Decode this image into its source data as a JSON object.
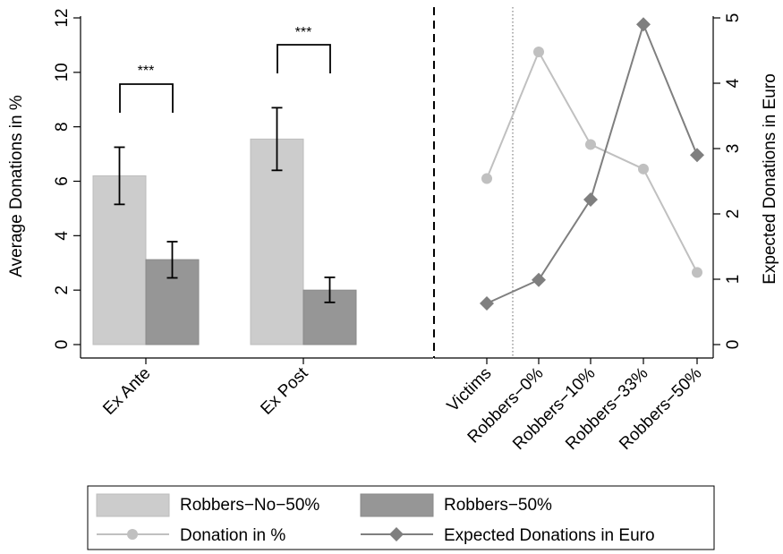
{
  "chart_data": {
    "type": "bar+line",
    "left_panel": {
      "type": "bar",
      "ylabel": "Average Donations in %",
      "ylim": [
        0,
        12
      ],
      "yticks": [
        "0",
        "2",
        "4",
        "6",
        "8",
        "10",
        "12"
      ],
      "categories": [
        "Ex Ante",
        "Ex Post"
      ],
      "series": [
        {
          "name": "Robbers−No−50%",
          "color": "#cccccc",
          "values": [
            6.2,
            7.55
          ],
          "ci_low": [
            5.15,
            6.4
          ],
          "ci_high": [
            7.25,
            8.7
          ]
        },
        {
          "name": "Robbers−50%",
          "color": "#969696",
          "values": [
            3.12,
            2.0
          ],
          "ci_low": [
            2.45,
            1.55
          ],
          "ci_high": [
            3.78,
            2.47
          ]
        }
      ],
      "significance": [
        "***",
        "***"
      ]
    },
    "right_panel": {
      "type": "line",
      "categories": [
        "Victims",
        "Robbers−0%",
        "Robbers−10%",
        "Robbers−33%",
        "Robbers−50%"
      ],
      "left_ylim": [
        0,
        12
      ],
      "right_ylabel": "Expected Donations in Euro",
      "right_ylim": [
        0,
        5
      ],
      "right_yticks": [
        "0",
        "1",
        "2",
        "3",
        "4",
        "5"
      ],
      "series": [
        {
          "name": "Donation in %",
          "axis": "left",
          "marker": "circle",
          "color": "#c0c0c0",
          "values": [
            6.1,
            10.75,
            7.35,
            6.45,
            2.65
          ]
        },
        {
          "name": "Expected Donations in Euro",
          "axis": "right",
          "marker": "diamond",
          "color": "#7f7f7f",
          "values": [
            0.63,
            0.99,
            2.22,
            4.9,
            2.9
          ]
        }
      ]
    },
    "legend": {
      "placement": "bottom",
      "entries": [
        {
          "label": "Robbers−No−50%",
          "kind": "bar",
          "color": "#cccccc"
        },
        {
          "label": "Robbers−50%",
          "kind": "bar",
          "color": "#969696"
        },
        {
          "label": "Donation in %",
          "kind": "line-circle",
          "color": "#c0c0c0"
        },
        {
          "label": "Expected Donations in Euro",
          "kind": "line-diamond",
          "color": "#7f7f7f"
        }
      ]
    }
  }
}
